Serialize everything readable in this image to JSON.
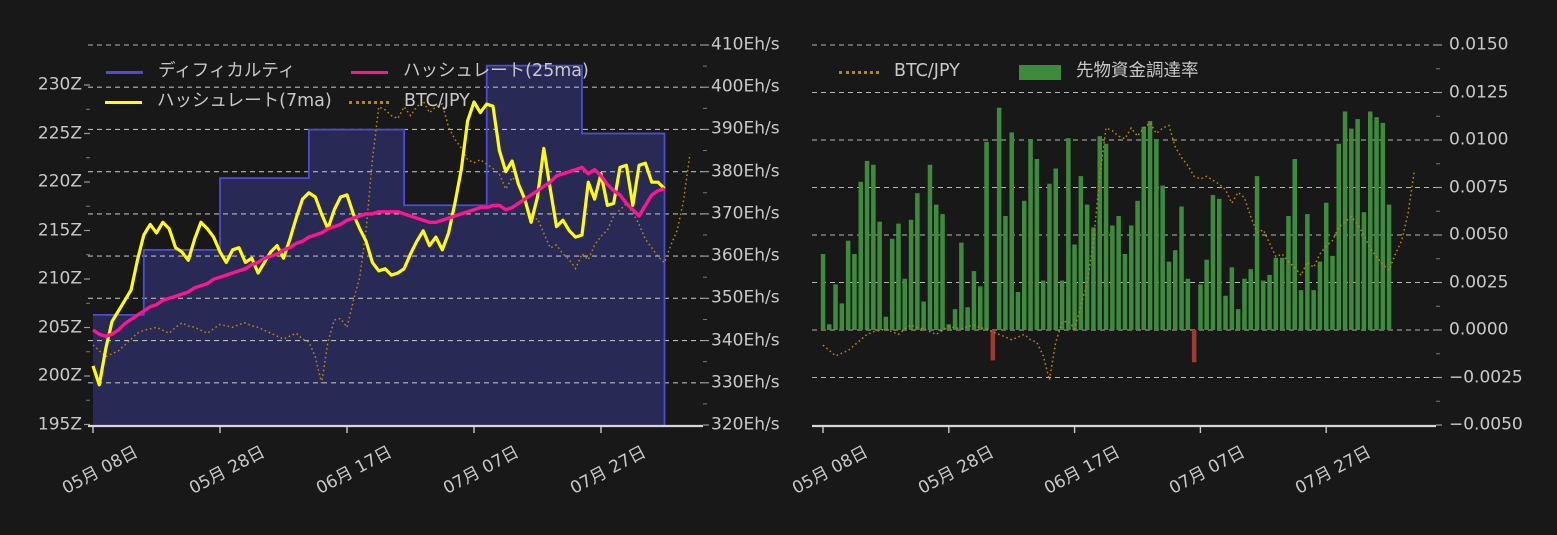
{
  "page": {
    "background": "#181818",
    "text_color": "#c9c9c9",
    "grid_color": "#d2d2d2",
    "axis_line_color": "#d6d6d6"
  },
  "left_chart": {
    "legend": [
      {
        "label": "ディフィカルティ",
        "color": "#4c4cd4",
        "swatch": "line"
      },
      {
        "label": "ハッシュレート(25ma)",
        "color": "#ff1493",
        "swatch": "line"
      },
      {
        "label": "ハッシュレート(7ma)",
        "color": "#ffff00",
        "swatch": "line"
      },
      {
        "label": "BTC/JPY",
        "color": "#b8860b",
        "swatch": "dotted-line"
      }
    ],
    "y_axis_left": {
      "labels": [
        "230Z",
        "225Z",
        "220Z",
        "215Z",
        "210Z",
        "205Z",
        "200Z",
        "195Z"
      ]
    },
    "y_axis_right": {
      "labels": [
        "410Eh/s",
        "400Eh/s",
        "390Eh/s",
        "380Eh/s",
        "370Eh/s",
        "360Eh/s",
        "350Eh/s",
        "340Eh/s",
        "330Eh/s",
        "320Eh/s"
      ]
    },
    "x_axis": {
      "labels": [
        "05月 08日",
        "05月 28日",
        "06月 17日",
        "07月 07日",
        "07月 27日"
      ]
    }
  },
  "right_chart": {
    "legend": [
      {
        "label": "BTC/JPY",
        "color": "#b8860b",
        "swatch": "dotted-line"
      },
      {
        "label": "先物資金調達率",
        "color": "#3d8b3d",
        "swatch": "rect"
      }
    ],
    "y_axis_right": {
      "labels": [
        "0.0150",
        "0.0125",
        "0.0100",
        "0.0075",
        "0.0050",
        "0.0025",
        "0.0000",
        "−0.0025",
        "−0.0050"
      ]
    },
    "x_axis": {
      "labels": [
        "05月 08日",
        "05月 28日",
        "06月 17日",
        "07月 07日",
        "07月 27日"
      ]
    }
  },
  "chart_data": [
    {
      "type": "line",
      "title": "difficulty and hashrate",
      "x_tick_labels": [
        "05月 08日",
        "05月 28日",
        "06月 17日",
        "07月 07日",
        "07月 27日"
      ],
      "x_tick_indices": [
        0,
        20,
        40,
        60,
        80
      ],
      "y_left": {
        "unit": "Z",
        "range": [
          195,
          230
        ],
        "tick_step": 5
      },
      "y_right": {
        "unit": "Eh/s",
        "range": [
          320,
          410
        ],
        "tick_step": 10
      },
      "grid": true,
      "legend_position": "top",
      "series": [
        {
          "name": "ディフィカルティ",
          "type": "step-area",
          "axis": "left",
          "color": "#4c4cd4",
          "fill": "rgba(76,76,212,0.33)",
          "segments": [
            {
              "start": 0,
              "end": 8,
              "value": 206.3
            },
            {
              "start": 8,
              "end": 20,
              "value": 213.0
            },
            {
              "start": 20,
              "end": 34,
              "value": 220.4
            },
            {
              "start": 34,
              "end": 49,
              "value": 225.4
            },
            {
              "start": 49,
              "end": 62,
              "value": 217.6
            },
            {
              "start": 62,
              "end": 77,
              "value": 232.0
            },
            {
              "start": 77,
              "end": 90,
              "value": 225.0
            }
          ]
        },
        {
          "name": "ハッシュレート(7ma)",
          "type": "line",
          "axis": "right",
          "color": "#ffff00",
          "values": [
            334,
            329.5,
            338,
            344.5,
            347,
            349.5,
            352,
            359,
            365,
            367.5,
            365.5,
            368,
            366.5,
            362,
            361,
            359,
            364,
            368,
            366.5,
            364.5,
            361,
            358.5,
            361.5,
            362,
            358.5,
            359.5,
            356,
            358.5,
            361,
            362.5,
            359.5,
            364,
            369,
            373.5,
            375,
            374,
            370,
            366.5,
            371,
            374,
            374.5,
            370,
            366.5,
            363.5,
            358.5,
            356.5,
            357,
            355.5,
            356,
            357,
            360.5,
            363.5,
            366,
            362.5,
            364.5,
            361.5,
            365.5,
            372.5,
            380.5,
            392,
            396.5,
            394,
            396,
            395.5,
            385,
            380,
            382.5,
            377,
            373.5,
            368,
            374,
            385.5,
            376,
            367,
            368.5,
            366,
            364.5,
            365,
            377.5,
            373.5,
            379.5,
            372,
            372.5,
            381,
            381.5,
            372,
            381.5,
            382,
            377.5,
            377.5,
            376
          ]
        },
        {
          "name": "ハッシュレート(25ma)",
          "type": "line",
          "axis": "right",
          "color": "#ff1493",
          "values": [
            342.5,
            341.5,
            341,
            341.5,
            342.5,
            344,
            345,
            346,
            347,
            348,
            348.5,
            349.5,
            350,
            350.5,
            351,
            351.5,
            352.5,
            353,
            353.5,
            354.5,
            355,
            355.5,
            356,
            356.5,
            357,
            358,
            358.5,
            359.5,
            360,
            360.5,
            361.5,
            362,
            363,
            363.5,
            364.5,
            365,
            365.5,
            366.5,
            367,
            367.5,
            368.5,
            369,
            369.5,
            370,
            370,
            370.5,
            370.5,
            370.5,
            370.5,
            370,
            369.5,
            369,
            368.5,
            368,
            368,
            368.5,
            369,
            369.5,
            370,
            370.5,
            371,
            371.5,
            371.5,
            372,
            372,
            371,
            371.5,
            372.5,
            373.5,
            374.5,
            375.5,
            376.5,
            377.5,
            379,
            379.5,
            380,
            380.5,
            381,
            379.5,
            380.5,
            379,
            377,
            375.5,
            374.5,
            372.5,
            371,
            369.5,
            372,
            374.5,
            375.5,
            376
          ]
        },
        {
          "name": "BTC/JPY",
          "type": "dotted-line",
          "axis": "hidden",
          "color": "#b8860b",
          "values_norm": [
            0.16,
            0.14,
            0.12,
            0.13,
            0.14,
            0.16,
            0.18,
            0.2,
            0.21,
            0.215,
            0.22,
            0.21,
            0.2,
            0.22,
            0.235,
            0.225,
            0.22,
            0.21,
            0.2,
            0.215,
            0.23,
            0.225,
            0.22,
            0.23,
            0.235,
            0.225,
            0.22,
            0.21,
            0.2,
            0.19,
            0.18,
            0.19,
            0.2,
            0.18,
            0.17,
            0.12,
            0.03,
            0.17,
            0.245,
            0.25,
            0.22,
            0.31,
            0.39,
            0.55,
            0.79,
            0.97,
            0.96,
            0.94,
            0.93,
            0.97,
            0.94,
            0.97,
            0.99,
            0.95,
            0.97,
            0.98,
            0.9,
            0.86,
            0.83,
            0.79,
            0.78,
            0.79,
            0.775,
            0.76,
            0.74,
            0.69,
            0.73,
            0.71,
            0.64,
            0.58,
            0.59,
            0.54,
            0.49,
            0.5,
            0.47,
            0.45,
            0.42,
            0.47,
            0.45,
            0.5,
            0.53,
            0.55,
            0.6,
            0.62,
            0.64,
            0.61,
            0.57,
            0.52,
            0.49,
            0.46,
            0.44,
            0.5,
            0.55,
            0.65,
            0.81
          ]
        }
      ]
    },
    {
      "type": "bar",
      "title": "funding rate",
      "x_tick_labels": [
        "05月 08日",
        "05月 28日",
        "06月 17日",
        "07月 07日",
        "07月 27日"
      ],
      "x_tick_indices": [
        0,
        20,
        40,
        60,
        80
      ],
      "y_right": {
        "range": [
          -0.005,
          0.015
        ],
        "tick_step": 0.0025
      },
      "grid": true,
      "legend_position": "top",
      "series": [
        {
          "name": "先物資金調達率",
          "type": "bar",
          "color_positive": "#3d8b3d",
          "color_negative": "#9e3a33",
          "values": [
            0.004,
            0.0003,
            0.0024,
            0.0014,
            0.0047,
            0.004,
            0.0078,
            0.0089,
            0.0087,
            0.0057,
            0.0007,
            0.0048,
            0.0056,
            0.0027,
            0.0058,
            0.0072,
            0.0015,
            0.0087,
            0.0066,
            0.0061,
            0.0003,
            0.0011,
            0.0046,
            0.0012,
            0.0031,
            0.0023,
            0.0099,
            -0.0016,
            0.0117,
            0.006,
            0.0104,
            0.002,
            0.0068,
            0.01,
            0.009,
            0.0026,
            0.0077,
            0.0085,
            0.0026,
            0.0101,
            0.0045,
            0.0081,
            0.0066,
            0.0054,
            0.0102,
            0.0098,
            0.0055,
            0.006,
            0.004,
            0.0055,
            0.0068,
            0.0107,
            0.011,
            0.01,
            0.0076,
            0.0036,
            0.0042,
            0.0065,
            0.0027,
            -0.0017,
            0.0024,
            0.0037,
            0.0071,
            0.0069,
            0.0018,
            0.0033,
            0.0011,
            0.0027,
            0.0032,
            0.0081,
            0.0026,
            0.0029,
            0.0038,
            0.0038,
            0.006,
            0.009,
            0.0021,
            0.0061,
            0.0021,
            0.0036,
            0.0067,
            0.0039,
            0.0098,
            0.0115,
            0.0106,
            0.0111,
            0.0062,
            0.0115,
            0.0112,
            0.0109,
            0.0066
          ]
        },
        {
          "name": "BTC/JPY",
          "type": "dotted-line",
          "axis": "hidden",
          "color": "#b8860b",
          "values_norm_ref": "chart_data.0.series.3.values_norm"
        }
      ]
    }
  ]
}
